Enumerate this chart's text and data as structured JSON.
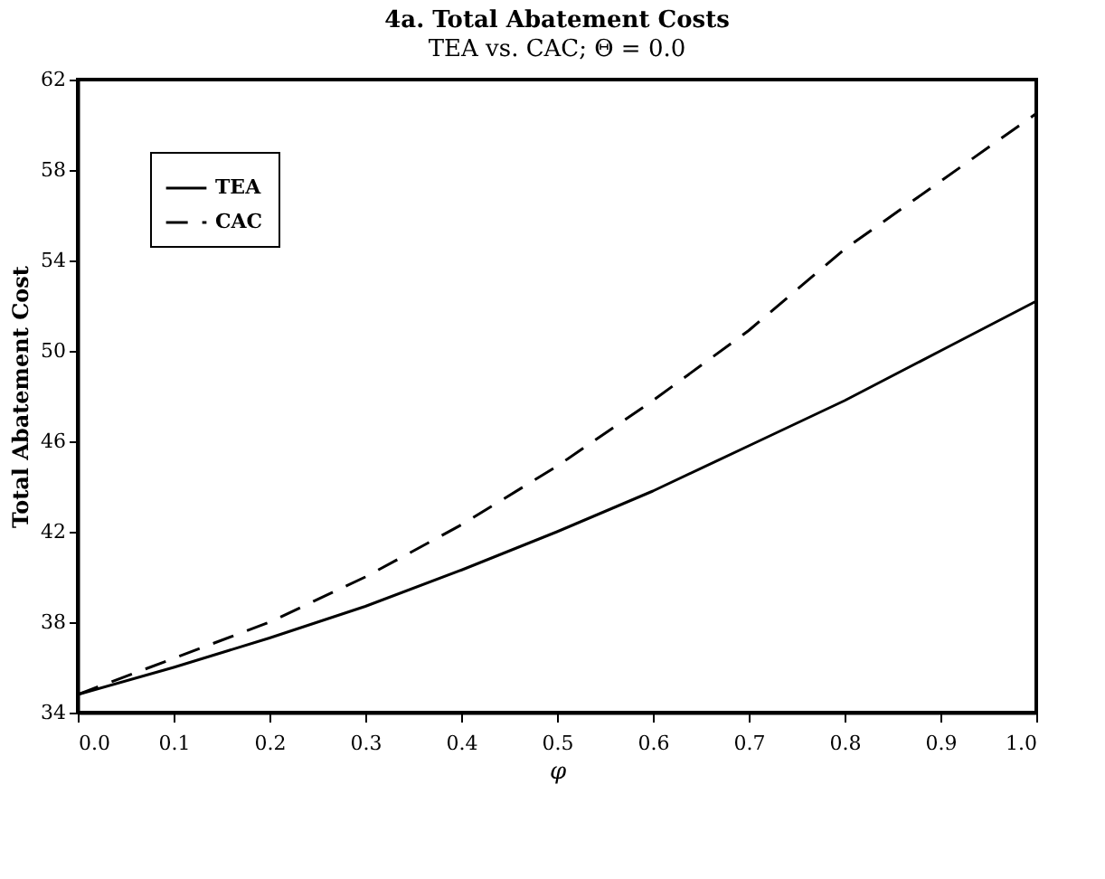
{
  "chart_data": {
    "type": "line",
    "title": "4a. Total Abatement Costs",
    "subtitle": "TEA vs. CAC; Θ = 0.0",
    "xlabel": "φ",
    "ylabel": "Total Abatement Cost",
    "x": [
      0,
      0.1,
      0.2,
      0.3,
      0.4,
      0.5,
      0.6,
      0.7,
      0.8,
      0.9,
      1.0
    ],
    "series": [
      {
        "name": "TEA",
        "color": "#000000",
        "line_style": "solid",
        "values": [
          34.8,
          36.0,
          37.3,
          38.7,
          40.3,
          42.0,
          43.8,
          45.8,
          47.8,
          50.0,
          52.2
        ]
      },
      {
        "name": "CAC",
        "color": "#000000",
        "line_style": "dashed",
        "values": [
          34.8,
          36.4,
          38.0,
          40.0,
          42.3,
          44.9,
          47.8,
          50.9,
          54.5,
          57.5,
          60.5
        ]
      }
    ],
    "xlim": [
      0,
      1
    ],
    "xticks": [
      {
        "value": 0,
        "label": "0.0"
      },
      0.1,
      0.2,
      0.3,
      0.4,
      0.5,
      0.6,
      0.7,
      0.8,
      0.9,
      {
        "value": 1,
        "label": "1.0"
      }
    ],
    "ylim": [
      34,
      62
    ],
    "yticks": [
      34,
      38,
      42,
      46,
      50,
      54,
      58,
      62
    ],
    "grid": false,
    "legend": "top left",
    "marker": "none"
  }
}
